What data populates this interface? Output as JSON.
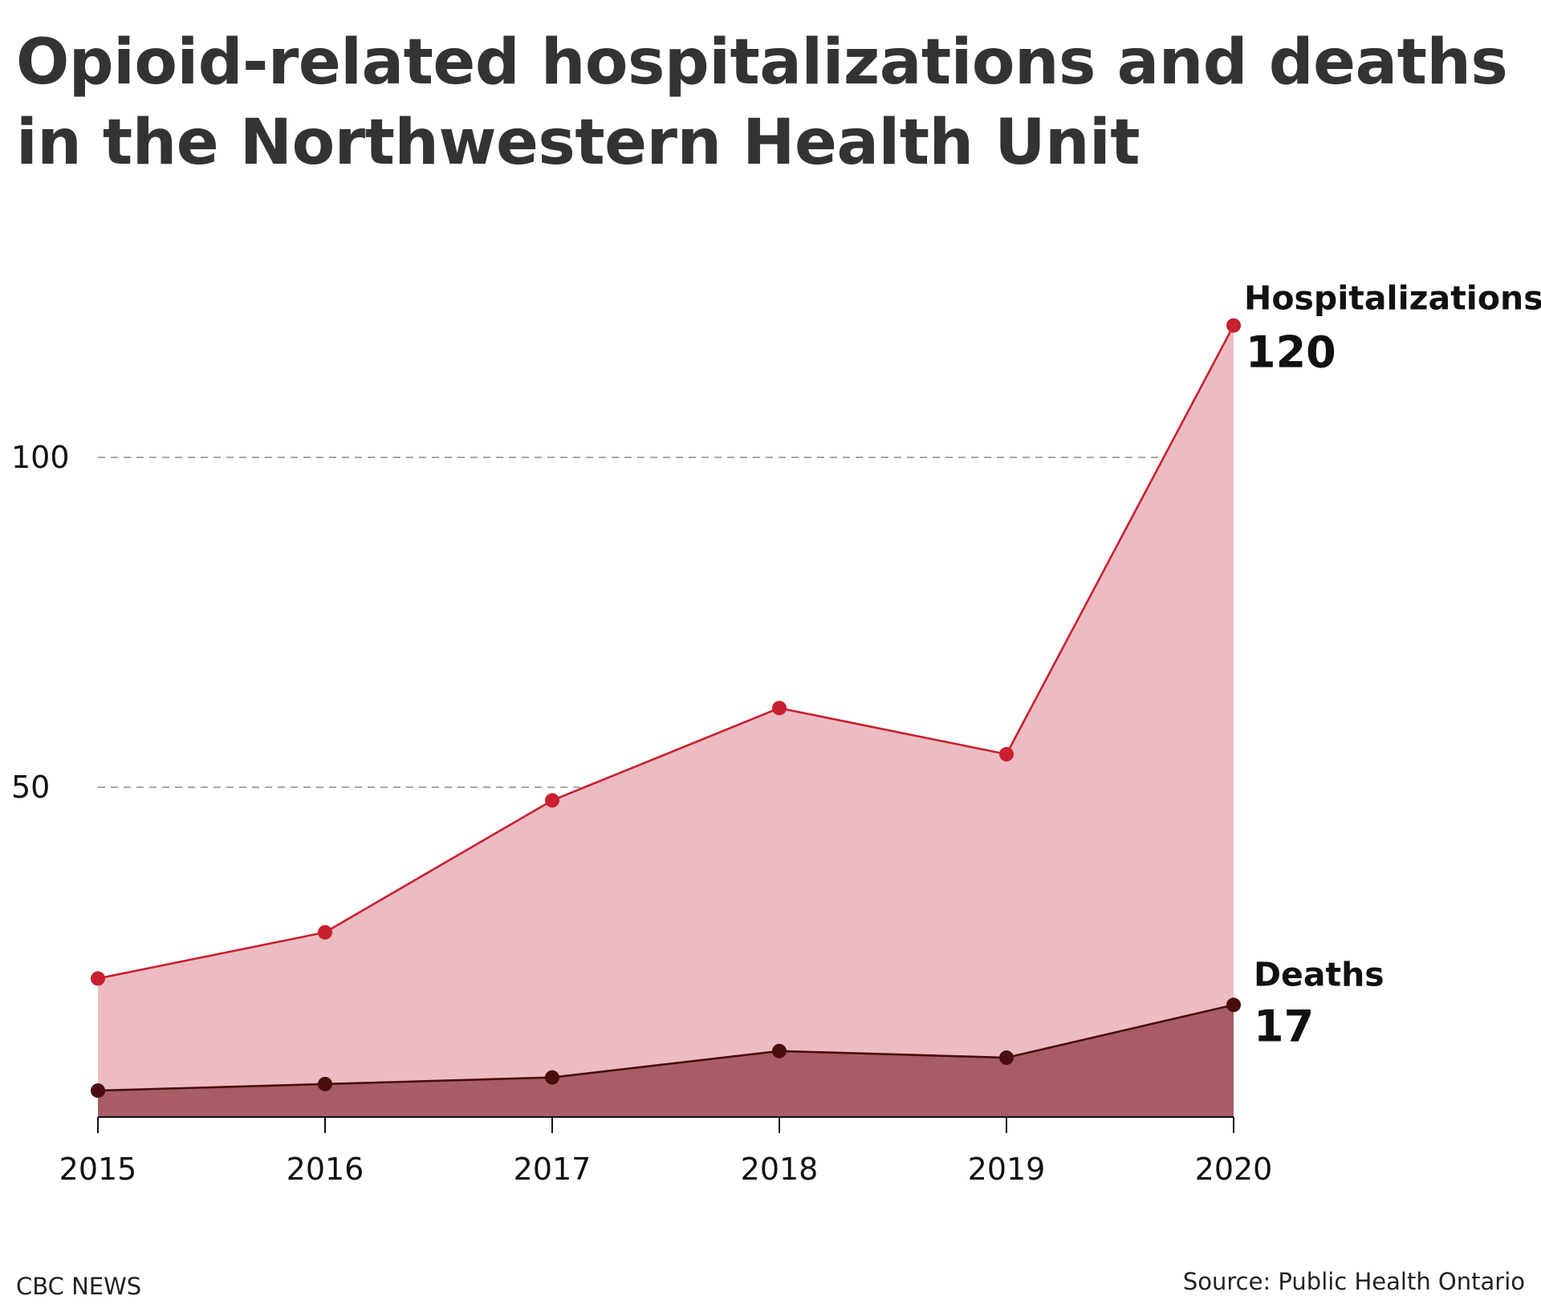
{
  "header": {
    "title": "Opioid-related hospitalizations and deaths in the Northwestern Health Unit"
  },
  "footer": {
    "credit": "CBC NEWS",
    "source": "Source: Public Health Ontario"
  },
  "chart_data": {
    "type": "area",
    "title": "Opioid-related hospitalizations and deaths in the Northwestern Health Unit",
    "xlabel": "",
    "ylabel": "",
    "x": [
      "2015",
      "2016",
      "2017",
      "2018",
      "2019",
      "2020"
    ],
    "ylim": [
      0,
      120
    ],
    "yticks": [
      "50",
      "100"
    ],
    "grid": "horizontal dashed",
    "legend": "direct labels at right end of each series",
    "series": [
      {
        "name": "Hospitalizations",
        "values": [
          21,
          28,
          48,
          62,
          55,
          120
        ],
        "end_label": "120",
        "line_color": "#c8202f",
        "fill_color": "#edbcc3"
      },
      {
        "name": "Deaths",
        "values": [
          4,
          5,
          6,
          10,
          9,
          17
        ],
        "end_label": "17",
        "line_color": "#4a0d0d",
        "fill_color": "#a85c65"
      }
    ]
  }
}
